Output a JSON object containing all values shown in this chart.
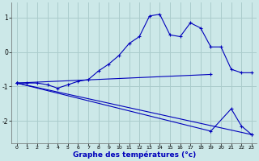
{
  "title": "",
  "xlabel": "Graphe des températures (°c)",
  "ylabel": "",
  "background_color": "#cce8e8",
  "line_color": "#0000bb",
  "grid_color": "#aacccc",
  "xlim": [
    -0.5,
    23.5
  ],
  "ylim": [
    -2.65,
    1.45
  ],
  "xticks": [
    0,
    1,
    2,
    3,
    4,
    5,
    6,
    7,
    8,
    9,
    10,
    11,
    12,
    13,
    14,
    15,
    16,
    17,
    18,
    19,
    20,
    21,
    22,
    23
  ],
  "yticks": [
    -2,
    -1,
    0,
    1
  ],
  "series": [
    {
      "x": [
        0,
        1,
        2,
        3,
        4,
        5,
        6,
        7,
        8,
        9,
        10,
        11,
        12,
        13,
        14,
        15,
        16,
        17,
        18,
        19,
        20,
        21,
        22,
        23
      ],
      "y": [
        -0.9,
        -0.9,
        -0.9,
        -0.95,
        -1.05,
        -0.95,
        -0.85,
        -0.8,
        -0.55,
        -0.35,
        -0.1,
        0.25,
        0.45,
        1.05,
        1.1,
        0.5,
        0.45,
        0.85,
        0.7,
        0.15,
        0.15,
        -0.5,
        -0.6,
        -0.6
      ]
    },
    {
      "x": [
        0,
        19
      ],
      "y": [
        -0.9,
        -0.65
      ]
    },
    {
      "x": [
        0,
        23
      ],
      "y": [
        -0.9,
        -2.4
      ]
    },
    {
      "x": [
        0,
        19,
        21,
        22,
        23
      ],
      "y": [
        -0.9,
        -2.3,
        -1.65,
        -2.15,
        -2.4
      ]
    }
  ]
}
